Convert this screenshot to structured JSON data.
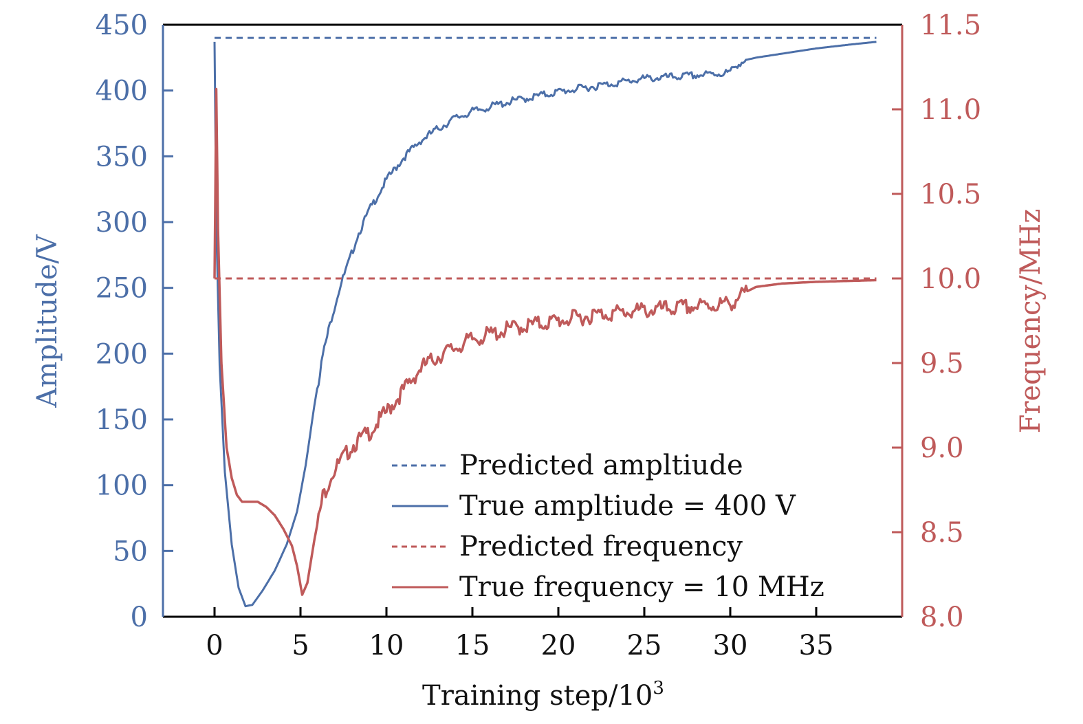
{
  "colors": {
    "amplitude": "#4c6fa8",
    "frequency": "#bf5a5a",
    "axis": "#000000"
  },
  "chart_data": {
    "type": "line",
    "title": "",
    "xlabel": "Training step/10",
    "xlabel_superscript": "3",
    "ylabel_left": "Amplitude/V",
    "ylabel_right": "Frequency/MHz",
    "xlim": [
      -3,
      40
    ],
    "ylim_left": [
      0,
      450
    ],
    "ylim_right": [
      8.0,
      11.5
    ],
    "x_ticks": [
      0,
      5,
      10,
      15,
      20,
      25,
      30,
      35
    ],
    "x_tick_labels": [
      "0",
      "5",
      "10",
      "15",
      "20",
      "25",
      "30",
      "35"
    ],
    "y_left_ticks": [
      0,
      50,
      100,
      150,
      200,
      250,
      300,
      350,
      400,
      450
    ],
    "y_left_tick_labels": [
      "0",
      "50",
      "100",
      "150",
      "200",
      "250",
      "300",
      "350",
      "400",
      "450"
    ],
    "y_right_ticks": [
      8.0,
      8.5,
      9.0,
      9.5,
      10.0,
      10.5,
      11.0,
      11.5
    ],
    "y_right_tick_labels": [
      "8.0",
      "8.5",
      "9.0",
      "9.5",
      "10.0",
      "10.5",
      "11.0",
      "11.5"
    ],
    "grid": false,
    "legend_position": "bottom-right",
    "series": [
      {
        "name": "Predicted amplitude",
        "legend_label": "Predicted ampltiude",
        "axis": "left",
        "style": "dashed",
        "x": [
          0,
          38.5
        ],
        "y": [
          440,
          440
        ]
      },
      {
        "name": "True amplitude = 400 V",
        "legend_label": "True ampltiude = 400 V",
        "axis": "left",
        "style": "solid",
        "x": [
          0,
          0.1,
          0.3,
          0.6,
          1.0,
          1.4,
          1.8,
          2.2,
          2.8,
          3.5,
          4.2,
          4.8,
          5.3,
          5.8,
          6.3,
          6.8,
          7.3,
          7.8,
          8.3,
          9.0,
          10.0,
          11.0,
          12.0,
          13.0,
          14.0,
          15.0,
          17.0,
          20.0,
          22.5,
          25.0,
          27.5,
          29.5,
          30.0,
          30.5,
          31.5,
          33.0,
          35.0,
          37.0,
          38.5
        ],
        "y": [
          437,
          300,
          190,
          110,
          55,
          22,
          8,
          9,
          20,
          35,
          55,
          80,
          115,
          160,
          200,
          228,
          252,
          270,
          290,
          310,
          333,
          350,
          363,
          372,
          380,
          385,
          392,
          400,
          405,
          410,
          412,
          414,
          415,
          422,
          425,
          428,
          432,
          435,
          437
        ]
      },
      {
        "name": "Predicted frequency",
        "legend_label": "Predicted frequency",
        "axis": "right",
        "style": "dashed",
        "x": [
          0,
          38.5
        ],
        "y": [
          10.0,
          10.0
        ]
      },
      {
        "name": "True frequency = 10 MHz",
        "legend_label": "True frequency = 10 MHz",
        "axis": "right",
        "style": "solid",
        "x": [
          0,
          0.1,
          0.2,
          0.4,
          0.7,
          1.0,
          1.3,
          1.6,
          2.0,
          2.5,
          3.0,
          3.5,
          4.0,
          4.5,
          4.8,
          5.1,
          5.4,
          5.8,
          6.3,
          6.8,
          7.5,
          8.0,
          9.0,
          10.0,
          11.0,
          12.0,
          13.0,
          14.0,
          15.0,
          17.5,
          20.0,
          22.5,
          25.0,
          27.5,
          30.0,
          30.5,
          31.5,
          33.0,
          35.0,
          38.5
        ],
        "y": [
          10.0,
          11.12,
          10.3,
          9.5,
          9.0,
          8.82,
          8.72,
          8.68,
          8.68,
          8.68,
          8.65,
          8.6,
          8.52,
          8.42,
          8.3,
          8.13,
          8.2,
          8.45,
          8.72,
          8.85,
          8.95,
          9.02,
          9.1,
          9.22,
          9.35,
          9.48,
          9.55,
          9.6,
          9.65,
          9.72,
          9.76,
          9.8,
          9.82,
          9.84,
          9.86,
          9.9,
          9.95,
          9.97,
          9.98,
          9.99
        ]
      }
    ]
  }
}
